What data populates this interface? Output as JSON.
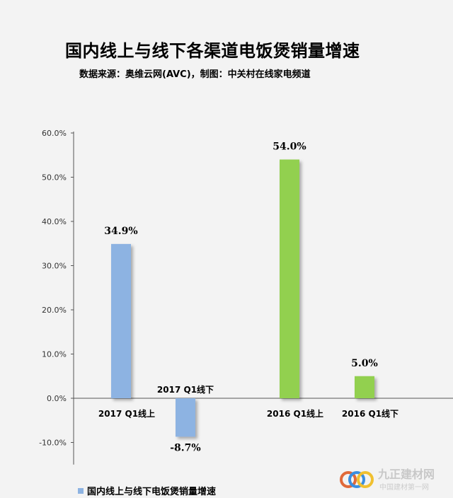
{
  "header": {
    "title": "国内线上与线下各渠道电饭煲销量增速",
    "subtitle": "数据来源：奥维云网(AVC)，制图：中关村在线家电频道"
  },
  "chart_data": {
    "type": "bar",
    "categories": [
      "2017 Q1线上",
      "2017 Q1线下",
      "2016 Q1线上",
      "2016 Q1线下"
    ],
    "values": [
      34.9,
      -8.7,
      54.0,
      5.0
    ],
    "data_labels": [
      "34.9%",
      "-8.7%",
      "54.0%",
      "5.0%"
    ],
    "bar_colors": [
      "#8db3e2",
      "#8db3e2",
      "#92d050",
      "#92d050"
    ],
    "y_ticks": [
      "60.0%",
      "50.0%",
      "40.0%",
      "30.0%",
      "20.0%",
      "10.0%",
      "0.0%",
      "-10.0%"
    ],
    "ylim": [
      -15,
      60
    ],
    "grid": false,
    "legend_position": "bottom-left"
  },
  "legend": {
    "label": "国内线上与线下电饭煲销量增速",
    "color": "#8db3e2"
  },
  "watermark": {
    "text": "九正建材网",
    "subtext": "中国建材第一网",
    "icon": "watermark-logo-icon"
  }
}
